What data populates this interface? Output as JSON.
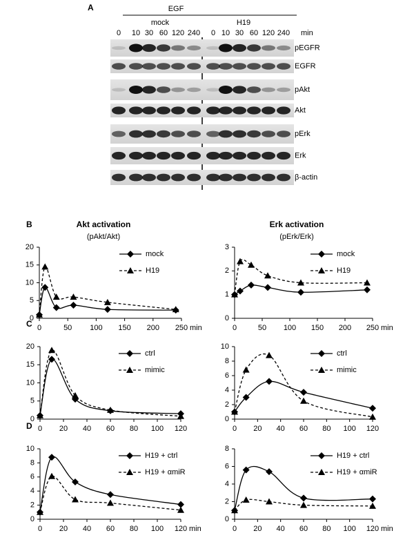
{
  "blot": {
    "label": "A",
    "treatment": "EGF",
    "unit": "min",
    "groups": [
      {
        "name": "mock",
        "lanes": [
          0,
          10,
          30,
          60,
          120,
          240
        ]
      },
      {
        "name": "H19",
        "lanes": [
          0,
          10,
          30,
          60,
          120,
          240
        ]
      }
    ],
    "rows": [
      "pEGFR",
      "EGFR",
      "pAkt",
      "Akt",
      "pErk",
      "Erk",
      "β-actin"
    ]
  },
  "chart_data": [
    {
      "type": "line",
      "label": "B",
      "title": "Akt activation",
      "subtitle": "(pAkt/Akt)",
      "x_unit": "min",
      "legend": "upper right",
      "x": [
        0,
        10,
        30,
        60,
        120,
        240
      ],
      "xlim": [
        0,
        250
      ],
      "xticks": [
        0,
        50,
        100,
        150,
        200,
        250
      ],
      "ylim": [
        0,
        20
      ],
      "yticks": [
        0,
        5,
        10,
        15,
        20
      ],
      "series": [
        {
          "name": "mock",
          "color": "#000000",
          "style": "solid",
          "marker": "diamond",
          "values": [
            1,
            8.7,
            3,
            3.7,
            2.5,
            2.3
          ]
        },
        {
          "name": "H19",
          "color": "#000000",
          "style": "dashed",
          "marker": "triangle",
          "values": [
            1,
            14.5,
            6,
            6,
            4.5,
            2.5
          ]
        }
      ]
    },
    {
      "type": "line",
      "title": "Erk activation",
      "subtitle": "(pErk/Erk)",
      "x_unit": "min",
      "legend": "upper right",
      "x": [
        0,
        10,
        30,
        60,
        120,
        240
      ],
      "xlim": [
        0,
        250
      ],
      "xticks": [
        0,
        50,
        100,
        150,
        200,
        250
      ],
      "ylim": [
        0,
        3
      ],
      "yticks": [
        0,
        1,
        2,
        3
      ],
      "series": [
        {
          "name": "mock",
          "color": "#000000",
          "style": "solid",
          "marker": "diamond",
          "values": [
            1,
            1.15,
            1.4,
            1.3,
            1.1,
            1.2
          ]
        },
        {
          "name": "H19",
          "color": "#000000",
          "style": "dashed",
          "marker": "triangle",
          "values": [
            1,
            2.4,
            2.25,
            1.8,
            1.5,
            1.5
          ]
        }
      ]
    },
    {
      "type": "line",
      "label": "C",
      "legend": "upper right",
      "x": [
        0,
        10,
        30,
        60,
        120
      ],
      "xlim": [
        0,
        120
      ],
      "xticks": [
        0,
        20,
        40,
        60,
        80,
        100,
        120
      ],
      "ylim": [
        0,
        20
      ],
      "yticks": [
        0,
        5,
        10,
        15,
        20
      ],
      "series": [
        {
          "name": "ctrl",
          "color": "#000000",
          "style": "solid",
          "marker": "diamond",
          "values": [
            1,
            16.5,
            5.5,
            2.3,
            1.5
          ]
        },
        {
          "name": "mimic",
          "color": "#000000",
          "style": "dashed",
          "marker": "triangle",
          "values": [
            1,
            19,
            6.5,
            2.5,
            0.8
          ]
        }
      ]
    },
    {
      "type": "line",
      "legend": "upper right",
      "x": [
        0,
        10,
        30,
        60,
        120
      ],
      "xlim": [
        0,
        120
      ],
      "xticks": [
        0,
        20,
        40,
        60,
        80,
        100,
        120
      ],
      "ylim": [
        0,
        10
      ],
      "yticks": [
        0,
        2,
        4,
        6,
        8,
        10
      ],
      "series": [
        {
          "name": "ctrl",
          "color": "#000000",
          "style": "solid",
          "marker": "diamond",
          "values": [
            1,
            3,
            5.2,
            3.7,
            1.5
          ]
        },
        {
          "name": "mimic",
          "color": "#000000",
          "style": "dashed",
          "marker": "triangle",
          "values": [
            1,
            6.8,
            8.8,
            2.5,
            0.3
          ]
        }
      ]
    },
    {
      "type": "line",
      "label": "D",
      "x_unit": "min",
      "legend": "upper right",
      "x": [
        0,
        10,
        30,
        60,
        120
      ],
      "xlim": [
        0,
        120
      ],
      "xticks": [
        0,
        20,
        40,
        60,
        80,
        100,
        120
      ],
      "ylim": [
        0,
        10
      ],
      "yticks": [
        0,
        2,
        4,
        6,
        8,
        10
      ],
      "series": [
        {
          "name": "H19 + ctrl",
          "color": "#000000",
          "style": "solid",
          "marker": "diamond",
          "values": [
            1,
            8.8,
            5.3,
            3.5,
            2.1
          ]
        },
        {
          "name": "H19 + αmiR",
          "color": "#000000",
          "style": "dashed",
          "marker": "triangle",
          "values": [
            1,
            6.1,
            2.8,
            2.3,
            1.3
          ]
        }
      ]
    },
    {
      "type": "line",
      "x_unit": "min",
      "legend": "upper right",
      "x": [
        0,
        10,
        30,
        60,
        120
      ],
      "xlim": [
        0,
        120
      ],
      "xticks": [
        0,
        20,
        40,
        60,
        80,
        100,
        120
      ],
      "ylim": [
        0,
        8
      ],
      "yticks": [
        0,
        2,
        4,
        6,
        8
      ],
      "series": [
        {
          "name": "H19 + ctrl",
          "color": "#000000",
          "style": "solid",
          "marker": "diamond",
          "values": [
            1,
            5.6,
            5.4,
            2.4,
            2.3
          ]
        },
        {
          "name": "H19 + αmiR",
          "color": "#000000",
          "style": "dashed",
          "marker": "triangle",
          "values": [
            1,
            2.2,
            2,
            1.6,
            1.5
          ]
        }
      ]
    }
  ]
}
